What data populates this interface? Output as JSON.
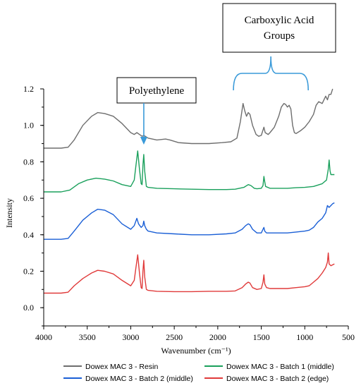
{
  "chart_data": {
    "type": "line",
    "xlabel": "Wavenumber (cm⁻¹)",
    "ylabel": "Intensity",
    "xlim": [
      4000,
      500
    ],
    "ylim": [
      -0.1,
      1.2
    ],
    "x_ticks": [
      "4000",
      "3500",
      "3000",
      "2500",
      "2000",
      "1500",
      "1000",
      "500"
    ],
    "y_ticks": [
      "0.0",
      "0.2",
      "0.4",
      "0.6",
      "0.8",
      "1.0",
      "1.2"
    ],
    "legend_position": "bottom",
    "annotations": [
      {
        "text": "Polyethylene",
        "arrow_x": 2850,
        "color": "#3a9ad9"
      },
      {
        "text_lines": [
          "Carboxylic Acid",
          "Groups"
        ],
        "brace_from": 1820,
        "brace_to": 960,
        "color": "#3a9ad9"
      }
    ],
    "series": [
      {
        "name": "Dowex MAC 3 - Resin",
        "color": "#6e6e6e",
        "points": [
          [
            4000,
            0.875
          ],
          [
            3800,
            0.875
          ],
          [
            3720,
            0.88
          ],
          [
            3650,
            0.92
          ],
          [
            3550,
            1.0
          ],
          [
            3450,
            1.05
          ],
          [
            3380,
            1.07
          ],
          [
            3300,
            1.065
          ],
          [
            3200,
            1.05
          ],
          [
            3100,
            1.01
          ],
          [
            3000,
            0.96
          ],
          [
            2960,
            0.95
          ],
          [
            2930,
            0.96
          ],
          [
            2900,
            0.95
          ],
          [
            2870,
            0.94
          ],
          [
            2850,
            0.945
          ],
          [
            2800,
            0.93
          ],
          [
            2700,
            0.92
          ],
          [
            2600,
            0.925
          ],
          [
            2550,
            0.92
          ],
          [
            2450,
            0.905
          ],
          [
            2300,
            0.9
          ],
          [
            2100,
            0.9
          ],
          [
            1950,
            0.905
          ],
          [
            1850,
            0.91
          ],
          [
            1780,
            0.93
          ],
          [
            1740,
            1.02
          ],
          [
            1710,
            1.12
          ],
          [
            1690,
            1.08
          ],
          [
            1670,
            1.05
          ],
          [
            1650,
            1.07
          ],
          [
            1630,
            1.06
          ],
          [
            1600,
            1.0
          ],
          [
            1560,
            0.95
          ],
          [
            1530,
            0.94
          ],
          [
            1500,
            0.945
          ],
          [
            1470,
            0.99
          ],
          [
            1455,
            0.96
          ],
          [
            1420,
            0.95
          ],
          [
            1400,
            0.96
          ],
          [
            1350,
            0.99
          ],
          [
            1300,
            1.05
          ],
          [
            1270,
            1.1
          ],
          [
            1240,
            1.12
          ],
          [
            1220,
            1.115
          ],
          [
            1200,
            1.1
          ],
          [
            1180,
            1.11
          ],
          [
            1160,
            1.09
          ],
          [
            1140,
            1.0
          ],
          [
            1120,
            0.96
          ],
          [
            1100,
            0.955
          ],
          [
            1050,
            0.97
          ],
          [
            1000,
            0.99
          ],
          [
            950,
            1.02
          ],
          [
            900,
            1.06
          ],
          [
            870,
            1.11
          ],
          [
            840,
            1.13
          ],
          [
            800,
            1.12
          ],
          [
            760,
            1.16
          ],
          [
            740,
            1.14
          ],
          [
            720,
            1.17
          ],
          [
            700,
            1.17
          ],
          [
            680,
            1.2
          ]
        ]
      },
      {
        "name": "Dowex MAC 3 - Batch 1 (middle)",
        "color": "#1aa05c",
        "points": [
          [
            4000,
            0.635
          ],
          [
            3800,
            0.635
          ],
          [
            3700,
            0.645
          ],
          [
            3600,
            0.68
          ],
          [
            3500,
            0.7
          ],
          [
            3400,
            0.71
          ],
          [
            3300,
            0.705
          ],
          [
            3200,
            0.695
          ],
          [
            3100,
            0.675
          ],
          [
            3000,
            0.665
          ],
          [
            2960,
            0.7
          ],
          [
            2940,
            0.78
          ],
          [
            2920,
            0.86
          ],
          [
            2900,
            0.76
          ],
          [
            2880,
            0.68
          ],
          [
            2870,
            0.675
          ],
          [
            2860,
            0.78
          ],
          [
            2850,
            0.84
          ],
          [
            2840,
            0.75
          ],
          [
            2820,
            0.665
          ],
          [
            2800,
            0.66
          ],
          [
            2700,
            0.655
          ],
          [
            2500,
            0.652
          ],
          [
            2300,
            0.65
          ],
          [
            2100,
            0.648
          ],
          [
            1900,
            0.648
          ],
          [
            1800,
            0.65
          ],
          [
            1700,
            0.66
          ],
          [
            1650,
            0.675
          ],
          [
            1620,
            0.67
          ],
          [
            1580,
            0.655
          ],
          [
            1550,
            0.652
          ],
          [
            1500,
            0.655
          ],
          [
            1480,
            0.67
          ],
          [
            1470,
            0.72
          ],
          [
            1460,
            0.69
          ],
          [
            1450,
            0.665
          ],
          [
            1400,
            0.655
          ],
          [
            1300,
            0.655
          ],
          [
            1200,
            0.655
          ],
          [
            1100,
            0.658
          ],
          [
            1000,
            0.66
          ],
          [
            900,
            0.665
          ],
          [
            800,
            0.68
          ],
          [
            750,
            0.7
          ],
          [
            730,
            0.76
          ],
          [
            720,
            0.81
          ],
          [
            710,
            0.75
          ],
          [
            700,
            0.73
          ],
          [
            680,
            0.73
          ],
          [
            660,
            0.73
          ]
        ]
      },
      {
        "name": "Dowex MAC 3 - Batch 2 (middle)",
        "color": "#1a5fd6",
        "points": [
          [
            4000,
            0.375
          ],
          [
            3800,
            0.375
          ],
          [
            3720,
            0.38
          ],
          [
            3650,
            0.42
          ],
          [
            3550,
            0.48
          ],
          [
            3450,
            0.52
          ],
          [
            3380,
            0.54
          ],
          [
            3300,
            0.535
          ],
          [
            3200,
            0.51
          ],
          [
            3100,
            0.46
          ],
          [
            3000,
            0.43
          ],
          [
            2960,
            0.45
          ],
          [
            2930,
            0.49
          ],
          [
            2910,
            0.46
          ],
          [
            2880,
            0.44
          ],
          [
            2860,
            0.45
          ],
          [
            2850,
            0.475
          ],
          [
            2840,
            0.45
          ],
          [
            2820,
            0.43
          ],
          [
            2800,
            0.42
          ],
          [
            2700,
            0.41
          ],
          [
            2500,
            0.405
          ],
          [
            2300,
            0.4
          ],
          [
            2100,
            0.4
          ],
          [
            1900,
            0.405
          ],
          [
            1800,
            0.41
          ],
          [
            1720,
            0.43
          ],
          [
            1680,
            0.45
          ],
          [
            1650,
            0.46
          ],
          [
            1630,
            0.455
          ],
          [
            1600,
            0.43
          ],
          [
            1550,
            0.41
          ],
          [
            1500,
            0.41
          ],
          [
            1480,
            0.43
          ],
          [
            1470,
            0.44
          ],
          [
            1460,
            0.42
          ],
          [
            1440,
            0.41
          ],
          [
            1400,
            0.41
          ],
          [
            1300,
            0.41
          ],
          [
            1200,
            0.41
          ],
          [
            1100,
            0.415
          ],
          [
            1000,
            0.42
          ],
          [
            950,
            0.425
          ],
          [
            900,
            0.44
          ],
          [
            850,
            0.47
          ],
          [
            800,
            0.49
          ],
          [
            760,
            0.52
          ],
          [
            740,
            0.56
          ],
          [
            720,
            0.55
          ],
          [
            700,
            0.56
          ],
          [
            680,
            0.57
          ],
          [
            660,
            0.575
          ]
        ]
      },
      {
        "name": "Dowex MAC 3 - Batch 2 (edge)",
        "color": "#e03a3a",
        "points": [
          [
            4000,
            0.08
          ],
          [
            3800,
            0.08
          ],
          [
            3720,
            0.085
          ],
          [
            3650,
            0.12
          ],
          [
            3550,
            0.16
          ],
          [
            3450,
            0.19
          ],
          [
            3380,
            0.205
          ],
          [
            3300,
            0.2
          ],
          [
            3200,
            0.185
          ],
          [
            3100,
            0.15
          ],
          [
            3000,
            0.12
          ],
          [
            2960,
            0.15
          ],
          [
            2940,
            0.22
          ],
          [
            2920,
            0.29
          ],
          [
            2900,
            0.19
          ],
          [
            2880,
            0.11
          ],
          [
            2870,
            0.105
          ],
          [
            2860,
            0.2
          ],
          [
            2850,
            0.26
          ],
          [
            2840,
            0.17
          ],
          [
            2820,
            0.1
          ],
          [
            2800,
            0.095
          ],
          [
            2700,
            0.09
          ],
          [
            2500,
            0.088
          ],
          [
            2300,
            0.088
          ],
          [
            2100,
            0.09
          ],
          [
            1900,
            0.09
          ],
          [
            1800,
            0.092
          ],
          [
            1720,
            0.11
          ],
          [
            1680,
            0.13
          ],
          [
            1650,
            0.14
          ],
          [
            1630,
            0.135
          ],
          [
            1600,
            0.11
          ],
          [
            1550,
            0.1
          ],
          [
            1500,
            0.105
          ],
          [
            1480,
            0.14
          ],
          [
            1470,
            0.18
          ],
          [
            1460,
            0.13
          ],
          [
            1440,
            0.11
          ],
          [
            1400,
            0.105
          ],
          [
            1300,
            0.105
          ],
          [
            1200,
            0.105
          ],
          [
            1100,
            0.11
          ],
          [
            1000,
            0.115
          ],
          [
            950,
            0.12
          ],
          [
            900,
            0.14
          ],
          [
            850,
            0.16
          ],
          [
            800,
            0.19
          ],
          [
            760,
            0.22
          ],
          [
            740,
            0.25
          ],
          [
            730,
            0.3
          ],
          [
            720,
            0.24
          ],
          [
            700,
            0.23
          ],
          [
            680,
            0.235
          ],
          [
            660,
            0.24
          ]
        ]
      }
    ]
  }
}
